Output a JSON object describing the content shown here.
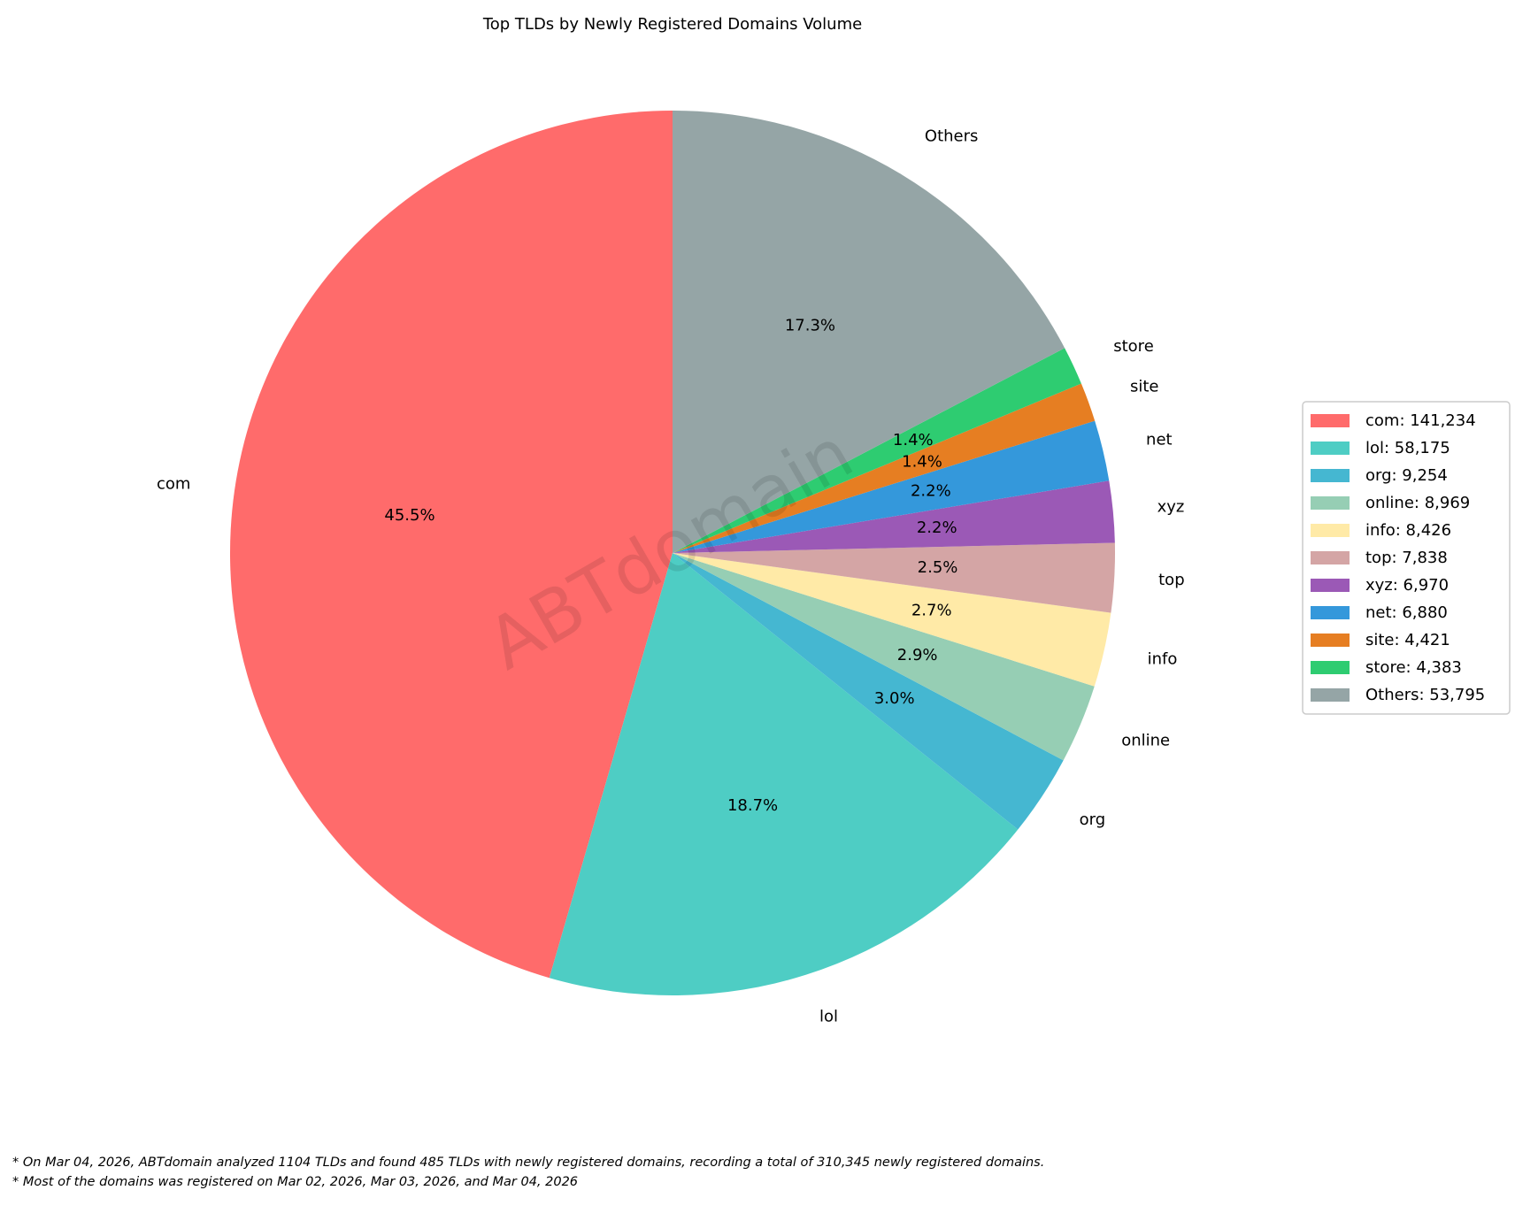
{
  "chart_data": {
    "type": "pie",
    "title": "Top TLDs by Newly Registered Domains Volume",
    "start_angle": 90,
    "counterclockwise": true,
    "legend_placement": "right",
    "watermark": "ABTdomain",
    "slices": [
      {
        "label": "com",
        "value": 141234,
        "pct": "45.5%",
        "legend": "com: 141,234",
        "color": "#ff6b6b"
      },
      {
        "label": "lol",
        "value": 58175,
        "pct": "18.7%",
        "legend": "lol: 58,175",
        "color": "#4ecdc4"
      },
      {
        "label": "org",
        "value": 9254,
        "pct": "3.0%",
        "legend": "org: 9,254",
        "color": "#45b7d1"
      },
      {
        "label": "online",
        "value": 8969,
        "pct": "2.9%",
        "legend": "online: 8,969",
        "color": "#96ceb4"
      },
      {
        "label": "info",
        "value": 8426,
        "pct": "2.7%",
        "legend": "info: 8,426",
        "color": "#ffeaa7"
      },
      {
        "label": "top",
        "value": 7838,
        "pct": "2.5%",
        "legend": "top: 7,838",
        "color": "#d4a5a5"
      },
      {
        "label": "xyz",
        "value": 6970,
        "pct": "2.2%",
        "legend": "xyz: 6,970",
        "color": "#9b59b6"
      },
      {
        "label": "net",
        "value": 6880,
        "pct": "2.2%",
        "legend": "net: 6,880",
        "color": "#3498db"
      },
      {
        "label": "site",
        "value": 4421,
        "pct": "1.4%",
        "legend": "site: 4,421",
        "color": "#e67e22"
      },
      {
        "label": "store",
        "value": 4383,
        "pct": "1.4%",
        "legend": "store: 4,383",
        "color": "#2ecc71"
      },
      {
        "label": "Others",
        "value": 53795,
        "pct": "17.3%",
        "legend": "Others: 53,795",
        "color": "#95a5a6"
      }
    ]
  },
  "footnotes": [
    "* On Mar 04, 2026, ABTdomain analyzed 1104 TLDs and found 485 TLDs with newly registered domains, recording a total of 310,345 newly registered domains.",
    "* Most of the domains was registered on Mar 02, 2026, Mar 03, 2026, and Mar 04, 2026"
  ]
}
